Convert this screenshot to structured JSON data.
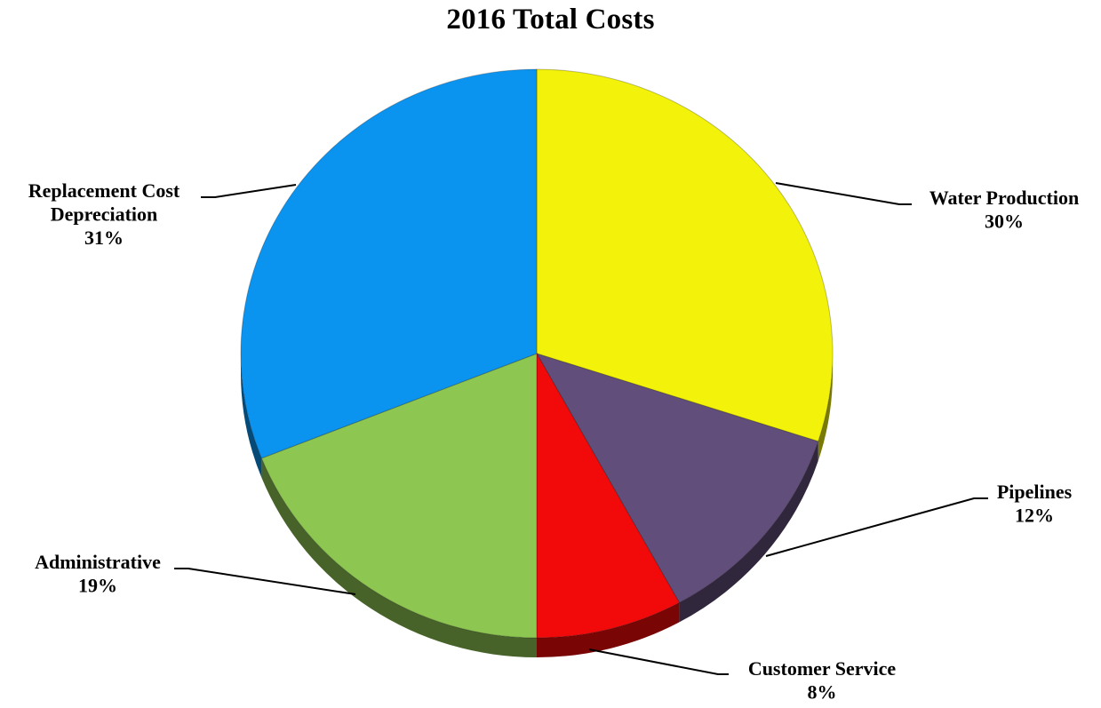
{
  "chart_data": {
    "type": "pie",
    "title": "2016 Total Costs",
    "style": "3d",
    "slices": [
      {
        "name": "Water Production",
        "label_lines": [
          "Water Production"
        ],
        "value": 30,
        "value_label": "30%",
        "color": "#f2f20a"
      },
      {
        "name": "Pipelines",
        "label_lines": [
          "Pipelines"
        ],
        "value": 12,
        "value_label": "12%",
        "color": "#624e7a"
      },
      {
        "name": "Customer Service",
        "label_lines": [
          "Customer Service"
        ],
        "value": 8,
        "value_label": "8%",
        "color": "#f20a0a"
      },
      {
        "name": "Administrative",
        "label_lines": [
          "Administrative"
        ],
        "value": 19,
        "value_label": "19%",
        "color": "#8dc651"
      },
      {
        "name": "Replacement Cost Depreciation",
        "label_lines": [
          "Replacement Cost",
          "Depreciation"
        ],
        "value": 31,
        "value_label": "31%",
        "color": "#0b93f0"
      }
    ]
  }
}
